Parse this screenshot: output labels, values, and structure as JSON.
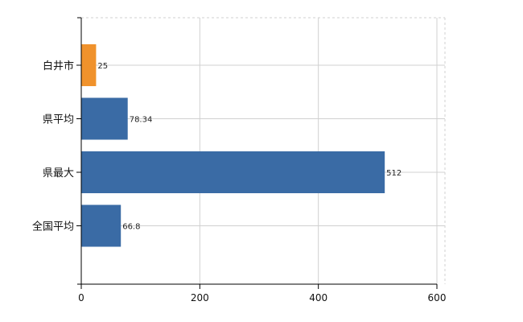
{
  "chart_data": {
    "type": "bar",
    "orientation": "horizontal",
    "categories": [
      "白井市",
      "県平均",
      "県最大",
      "全国平均"
    ],
    "values": [
      25,
      78.34,
      512,
      66.8
    ],
    "value_labels": [
      "25",
      "78.34",
      "512",
      "66.8"
    ],
    "xlim": [
      0,
      600
    ],
    "xticks": [
      0,
      200,
      400,
      600
    ],
    "xtick_labels": [
      "0",
      "200",
      "400",
      "600"
    ],
    "grid": true,
    "colors": {
      "highlight": "#f0922c",
      "default": "#3a6ba5",
      "grid": "#d0d0d0",
      "axis": "#000000"
    },
    "highlight_index": 0
  }
}
